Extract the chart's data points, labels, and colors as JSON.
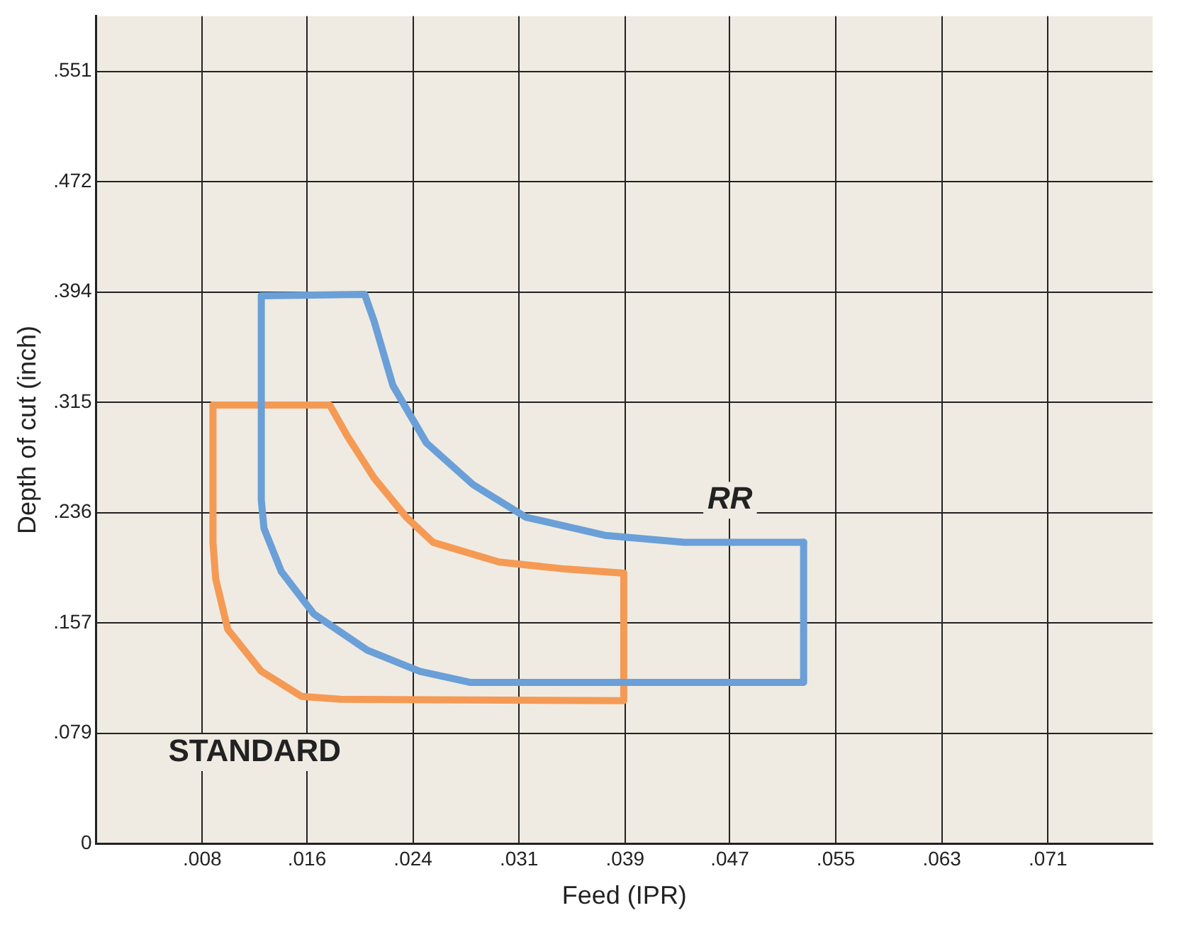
{
  "chart_data": {
    "type": "line",
    "xlabel": "Feed (IPR)",
    "ylabel": "Depth of cut (inch)",
    "xlim": [
      0,
      0.0787
    ],
    "ylim": [
      0,
      0.5906
    ],
    "xticks": [
      {
        "value": 0,
        "label": null
      },
      {
        "value": 0.0079,
        "label": ".008"
      },
      {
        "value": 0.0157,
        "label": ".016"
      },
      {
        "value": 0.0236,
        "label": ".024"
      },
      {
        "value": 0.0315,
        "label": ".031"
      },
      {
        "value": 0.0394,
        "label": ".039"
      },
      {
        "value": 0.0472,
        "label": ".047"
      },
      {
        "value": 0.0551,
        "label": ".055"
      },
      {
        "value": 0.063,
        "label": ".063"
      },
      {
        "value": 0.0709,
        "label": ".071"
      }
    ],
    "yticks": [
      0,
      {
        "value": 0.0787,
        "label": ".079"
      },
      {
        "value": 0.1575,
        "label": ".157"
      },
      {
        "value": 0.2362,
        "label": ".236"
      },
      {
        "value": 0.315,
        "label": ".315"
      },
      {
        "value": 0.3937,
        "label": ".394"
      },
      {
        "value": 0.4724,
        "label": ".472"
      },
      {
        "value": 0.5512,
        "label": ".551"
      }
    ],
    "grid": true,
    "legend": false,
    "marker": "none",
    "line_style": "solid",
    "series": [
      {
        "name": "RR",
        "color": "#6a9fd8",
        "x": [
          0.0123,
          0.02,
          0.0207,
          0.0221,
          0.0246,
          0.0281,
          0.032,
          0.0379,
          0.0438,
          0.0527
        ],
        "values": [
          0.391,
          0.392,
          0.373,
          0.327,
          0.286,
          0.256,
          0.233,
          0.22,
          0.215,
          0.215
        ]
      },
      {
        "color": "#6a9fd8",
        "x": [
          0.0123,
          0.0123,
          0.0125,
          0.0138,
          0.0162,
          0.0202,
          0.0241,
          0.0279,
          0.0527,
          0.0527
        ],
        "values": [
          0.391,
          0.245,
          0.225,
          0.194,
          0.164,
          0.138,
          0.123,
          0.115,
          0.115,
          0.215
        ]
      },
      {
        "color": "#f59a55",
        "x": [
          0.0087,
          0.0174,
          0.0187,
          0.0207,
          0.0231,
          0.0251,
          0.03,
          0.0349,
          0.0393
        ],
        "values": [
          0.313,
          0.313,
          0.291,
          0.261,
          0.233,
          0.215,
          0.201,
          0.196,
          0.193
        ]
      },
      {
        "name": "STANDARD",
        "color": "#f59a55",
        "x": [
          0.0087,
          0.0087,
          0.0089,
          0.0098,
          0.0123,
          0.0153,
          0.0182,
          0.0393,
          0.0393
        ],
        "values": [
          0.313,
          0.215,
          0.189,
          0.153,
          0.123,
          0.105,
          0.103,
          0.102,
          0.193
        ]
      }
    ]
  }
}
